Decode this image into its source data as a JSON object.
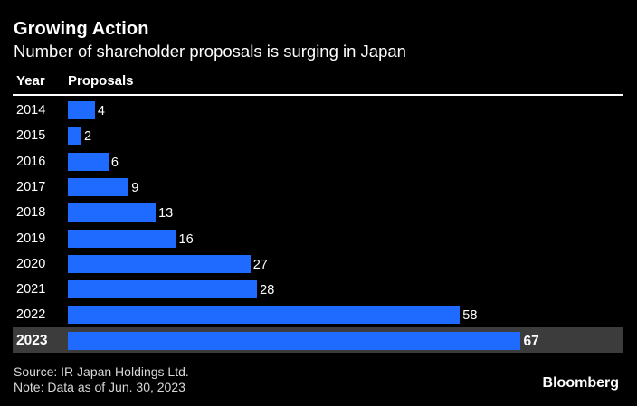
{
  "header": {
    "title": "Growing Action",
    "subtitle": "Number of shareholder proposals is surging in Japan"
  },
  "table": {
    "col_year": "Year",
    "col_proposals": "Proposals"
  },
  "chart_data": {
    "type": "bar",
    "orientation": "horizontal",
    "categories": [
      "2014",
      "2015",
      "2016",
      "2017",
      "2018",
      "2019",
      "2020",
      "2021",
      "2022",
      "2023"
    ],
    "values": [
      4,
      2,
      6,
      9,
      13,
      16,
      27,
      28,
      58,
      67
    ],
    "highlight": "2023",
    "bar_color": "#1f6bff",
    "highlight_row_color": "#3c3c3c"
  },
  "footer": {
    "source": "Source: IR Japan Holdings Ltd.",
    "note": "Note: Data as of Jun. 30, 2023",
    "brand": "Bloomberg"
  }
}
